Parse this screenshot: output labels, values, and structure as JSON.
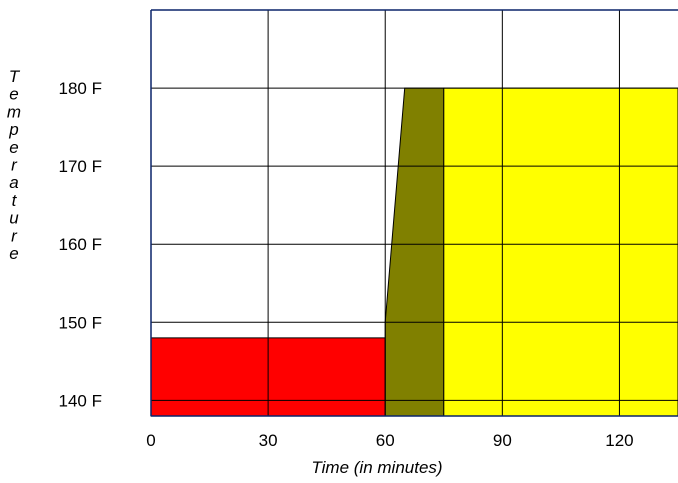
{
  "chart_data": {
    "type": "area",
    "title": "",
    "xlabel": "Time (in minutes)",
    "ylabel": "Temperature",
    "xlim": [
      0,
      135
    ],
    "ylim": [
      138,
      190
    ],
    "x_ticks": [
      {
        "value": 0,
        "label": "0"
      },
      {
        "value": 30,
        "label": "30"
      },
      {
        "value": 60,
        "label": "60"
      },
      {
        "value": 90,
        "label": "90"
      },
      {
        "value": 120,
        "label": "120"
      }
    ],
    "y_ticks": [
      {
        "value": 140,
        "label": "140 F"
      },
      {
        "value": 150,
        "label": "150 F"
      },
      {
        "value": 160,
        "label": "160 F"
      },
      {
        "value": 170,
        "label": "170 F"
      },
      {
        "value": 180,
        "label": "180 F"
      }
    ],
    "grid": true,
    "series": [
      {
        "color": "#ff0000",
        "points": [
          [
            0,
            138
          ],
          [
            0,
            148
          ],
          [
            60,
            148
          ],
          [
            60,
            138
          ]
        ]
      },
      {
        "color": "#808000",
        "points": [
          [
            60,
            138
          ],
          [
            60,
            150
          ],
          [
            65,
            180
          ],
          [
            75,
            180
          ],
          [
            75,
            138
          ]
        ]
      },
      {
        "color": "#ffff00",
        "points": [
          [
            75,
            138
          ],
          [
            75,
            180
          ],
          [
            135,
            180
          ],
          [
            135,
            138
          ]
        ]
      }
    ]
  }
}
